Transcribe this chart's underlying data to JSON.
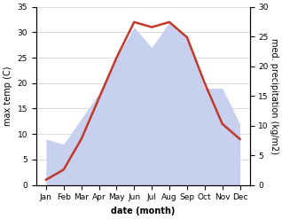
{
  "months": [
    "Jan",
    "Feb",
    "Mar",
    "Apr",
    "May",
    "Jun",
    "Jul",
    "Aug",
    "Sep",
    "Oct",
    "Nov",
    "Dec"
  ],
  "max_temp": [
    1,
    3,
    9,
    17,
    25,
    32,
    31,
    32,
    29,
    20,
    12,
    9
  ],
  "precipitation": [
    9,
    8,
    13,
    18,
    25,
    31,
    27,
    32,
    29,
    19,
    19,
    12
  ],
  "temp_color": "#c0392b",
  "precip_fill_color": "#c8d0f0",
  "temp_ylim": [
    0,
    35
  ],
  "precip_ylim": [
    0,
    30
  ],
  "temp_yticks": [
    0,
    5,
    10,
    15,
    20,
    25,
    30,
    35
  ],
  "precip_yticks": [
    0,
    5,
    10,
    15,
    20,
    25,
    30
  ],
  "xlabel": "date (month)",
  "ylabel_left": "max temp (C)",
  "ylabel_right": "med. precipitation (kg/m2)",
  "label_fontsize": 7,
  "tick_fontsize": 6.5
}
